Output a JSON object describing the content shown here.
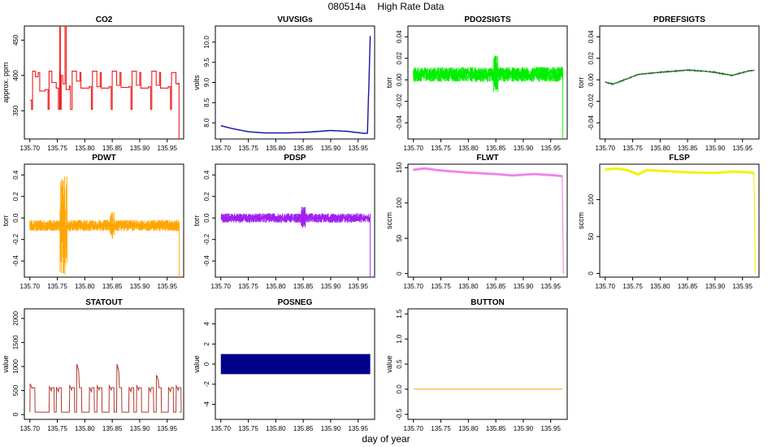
{
  "figure": {
    "title_id": "080514a",
    "title_text": "High Rate Data",
    "xlabel": "day of year"
  },
  "chart_data": [
    {
      "type": "line",
      "title": "CO2",
      "ylabel": "approx. ppm",
      "color": "#ee1c1c",
      "xlim": [
        135.69,
        135.98
      ],
      "ylim": [
        310,
        470
      ],
      "xticks": [
        135.7,
        135.75,
        135.8,
        135.85,
        135.9,
        135.95
      ],
      "yticks": [
        350,
        400,
        450
      ],
      "pattern": "co2",
      "series": [
        {
          "name": "CO2",
          "shape": "step"
        }
      ]
    },
    {
      "type": "line",
      "title": "VUVSIGs",
      "ylabel": "volts",
      "color": "#1515a8",
      "xlim": [
        135.69,
        135.98
      ],
      "ylim": [
        7.6,
        10.4
      ],
      "xticks": [
        135.7,
        135.75,
        135.8,
        135.85,
        135.9,
        135.95
      ],
      "yticks": [
        8.0,
        8.5,
        9.0,
        9.5,
        10.0
      ],
      "pattern": "vuv",
      "series": [
        {
          "name": "VUVSIGs",
          "x": [
            135.7,
            135.72,
            135.75,
            135.78,
            135.82,
            135.86,
            135.9,
            135.93,
            135.96,
            135.967,
            135.972
          ],
          "values": [
            7.93,
            7.86,
            7.78,
            7.75,
            7.75,
            7.77,
            7.81,
            7.79,
            7.74,
            7.74,
            10.15
          ]
        }
      ]
    },
    {
      "type": "line",
      "title": "PDO2SIGTS",
      "ylabel": "torr",
      "color": "#00ee00",
      "xlim": [
        135.69,
        135.98
      ],
      "ylim": [
        -0.055,
        0.05
      ],
      "xticks": [
        135.7,
        135.75,
        135.8,
        135.85,
        135.9,
        135.95
      ],
      "yticks": [
        -0.04,
        -0.02,
        0.0,
        0.02,
        0.04
      ],
      "pattern": "noise",
      "series": [
        {
          "name": "PDO2SIGTS",
          "mean": 0.005,
          "spread": 0.004
        }
      ]
    },
    {
      "type": "line",
      "title": "PDREFSIGTS",
      "ylabel": "torr",
      "color": "#196619",
      "xlim": [
        135.69,
        135.98
      ],
      "ylim": [
        -0.055,
        0.05
      ],
      "xticks": [
        135.7,
        135.75,
        135.8,
        135.85,
        135.9,
        135.95
      ],
      "yticks": [
        -0.04,
        -0.02,
        0.0,
        0.02,
        0.04
      ],
      "pattern": "pdref",
      "series": [
        {
          "name": "PDREFSIGTS",
          "x": [
            135.7,
            135.705,
            135.715,
            135.74,
            135.76,
            135.8,
            135.85,
            135.88,
            135.9,
            135.93,
            135.96,
            135.972
          ],
          "values": [
            -0.002,
            -0.003,
            -0.004,
            0.001,
            0.005,
            0.007,
            0.009,
            0.008,
            0.007,
            0.004,
            0.008,
            0.009
          ]
        }
      ]
    },
    {
      "type": "line",
      "title": "PDWT",
      "ylabel": "torr",
      "color": "#ffa500",
      "xlim": [
        135.69,
        135.98
      ],
      "ylim": [
        -0.55,
        0.5
      ],
      "xticks": [
        135.7,
        135.75,
        135.8,
        135.85,
        135.9,
        135.95
      ],
      "yticks": [
        -0.4,
        -0.2,
        0.0,
        0.2,
        0.4
      ],
      "pattern": "noise",
      "series": [
        {
          "name": "PDWT",
          "mean": -0.07,
          "spread": 0.03
        }
      ]
    },
    {
      "type": "line",
      "title": "PDSP",
      "ylabel": "torr",
      "color": "#a020f0",
      "xlim": [
        135.69,
        135.98
      ],
      "ylim": [
        -0.55,
        0.5
      ],
      "xticks": [
        135.7,
        135.75,
        135.8,
        135.85,
        135.9,
        135.95
      ],
      "yticks": [
        -0.4,
        -0.2,
        0.0,
        0.2,
        0.4
      ],
      "pattern": "noise",
      "series": [
        {
          "name": "PDSP",
          "mean": 0.0,
          "spread": 0.025
        }
      ]
    },
    {
      "type": "line",
      "title": "FLWT",
      "ylabel": "sccm",
      "color": "#ee82ee",
      "xlim": [
        135.69,
        135.98
      ],
      "ylim": [
        -5,
        155
      ],
      "xticks": [
        135.7,
        135.75,
        135.8,
        135.85,
        135.9,
        135.95
      ],
      "yticks": [
        0,
        50,
        100,
        150
      ],
      "pattern": "flwt",
      "series": [
        {
          "name": "FLWT",
          "x": [
            135.7,
            135.72,
            135.75,
            135.8,
            135.85,
            135.88,
            135.92,
            135.96,
            135.971
          ],
          "values": [
            147,
            149,
            146,
            143,
            141,
            139,
            141,
            139,
            138
          ]
        }
      ]
    },
    {
      "type": "line",
      "title": "FLSP",
      "ylabel": "sccm",
      "color": "#f2f200",
      "xlim": [
        135.69,
        135.98
      ],
      "ylim": [
        -5,
        148
      ],
      "xticks": [
        135.7,
        135.75,
        135.8,
        135.85,
        135.9,
        135.95
      ],
      "yticks": [
        0,
        50,
        100
      ],
      "pattern": "flsp",
      "series": [
        {
          "name": "FLSP",
          "x": [
            135.7,
            135.72,
            135.74,
            135.76,
            135.775,
            135.8,
            135.85,
            135.9,
            135.93,
            135.96,
            135.971
          ],
          "values": [
            141,
            142,
            140,
            134,
            140,
            139,
            137,
            136,
            138,
            137,
            136
          ]
        }
      ]
    },
    {
      "type": "line",
      "title": "STATOUT",
      "ylabel": "value",
      "color": "#b03a2e",
      "xlim": [
        135.69,
        135.98
      ],
      "ylim": [
        -100,
        2200
      ],
      "xticks": [
        135.7,
        135.75,
        135.8,
        135.85,
        135.9,
        135.95
      ],
      "yticks": [
        0,
        500,
        1000,
        1500,
        2000
      ],
      "pattern": "statout",
      "series": [
        {
          "name": "STATOUT",
          "shape": "pulse"
        }
      ]
    },
    {
      "type": "area",
      "title": "POSNEG",
      "ylabel": "value",
      "color": "#00008b",
      "xlim": [
        135.69,
        135.98
      ],
      "ylim": [
        -5.5,
        5.5
      ],
      "xticks": [
        135.7,
        135.75,
        135.8,
        135.85,
        135.9,
        135.95
      ],
      "yticks": [
        -4,
        -2,
        0,
        2,
        4
      ],
      "pattern": "posneg",
      "series": [
        {
          "name": "POSNEG",
          "x": [
            135.7,
            135.972
          ],
          "upper": [
            1,
            1
          ],
          "lower": [
            -1,
            -1
          ]
        }
      ]
    },
    {
      "type": "line",
      "title": "BUTTON",
      "ylabel": "value",
      "color": "#ffa500",
      "xlim": [
        135.69,
        135.98
      ],
      "ylim": [
        -0.6,
        1.6
      ],
      "xticks": [
        135.7,
        135.75,
        135.8,
        135.85,
        135.9,
        135.95
      ],
      "yticks": [
        -0.5,
        0.0,
        0.5,
        1.0,
        1.5
      ],
      "pattern": "button",
      "series": [
        {
          "name": "BUTTON",
          "x": [
            135.7,
            135.972
          ],
          "values": [
            0,
            0
          ]
        }
      ]
    }
  ]
}
